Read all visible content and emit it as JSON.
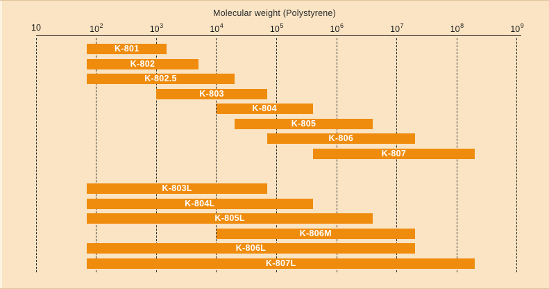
{
  "chart_data": {
    "type": "bar",
    "variant": "horizontal-range",
    "title": "Molecular weight (Polystyrene)",
    "x_axis": {
      "scale": "log10",
      "min": 10,
      "max": 1000000000,
      "ticks": [
        {
          "base": "10",
          "sup": "",
          "exp": 1
        },
        {
          "base": "10",
          "sup": "2",
          "exp": 2
        },
        {
          "base": "10",
          "sup": "3",
          "exp": 3
        },
        {
          "base": "10",
          "sup": "4",
          "exp": 4
        },
        {
          "base": "10",
          "sup": "5",
          "exp": 5
        },
        {
          "base": "10",
          "sup": "6",
          "exp": 6
        },
        {
          "base": "10",
          "sup": "7",
          "exp": 7
        },
        {
          "base": "10",
          "sup": "8",
          "exp": 8
        },
        {
          "base": "10",
          "sup": "9",
          "exp": 9
        }
      ],
      "grid": "dashed-vertical"
    },
    "legend": "none",
    "bars": [
      {
        "label": "K-801",
        "low": 70,
        "high": 1500,
        "group": 0
      },
      {
        "label": "K-802",
        "low": 70,
        "high": 5000,
        "group": 0
      },
      {
        "label": "K-802.5",
        "low": 70,
        "high": 20000,
        "group": 0
      },
      {
        "label": "K-803",
        "low": 1000,
        "high": 70000,
        "group": 0
      },
      {
        "label": "K-804",
        "low": 10000,
        "high": 400000,
        "group": 0
      },
      {
        "label": "K-805",
        "low": 20000,
        "high": 4000000,
        "group": 0
      },
      {
        "label": "K-806",
        "low": 70000,
        "high": 20000000,
        "group": 0
      },
      {
        "label": "K-807",
        "low": 400000,
        "high": 200000000,
        "group": 0
      },
      {
        "label": "K-803L",
        "low": 70,
        "high": 70000,
        "group": 1
      },
      {
        "label": "K-804L",
        "low": 70,
        "high": 400000,
        "group": 1
      },
      {
        "label": "K-805L",
        "low": 70,
        "high": 4000000,
        "group": 1
      },
      {
        "label": "K-806M",
        "low": 10000,
        "high": 20000000,
        "group": 1
      },
      {
        "label": "K-806L",
        "low": 70,
        "high": 20000000,
        "group": 1
      },
      {
        "label": "K-807L",
        "low": 70,
        "high": 200000000,
        "group": 1
      }
    ],
    "colors": {
      "bar": "#EF8C0E",
      "background": "#FAE4C4",
      "bar_label": "#FFFFFF",
      "axis": "#1C1C1C"
    }
  }
}
